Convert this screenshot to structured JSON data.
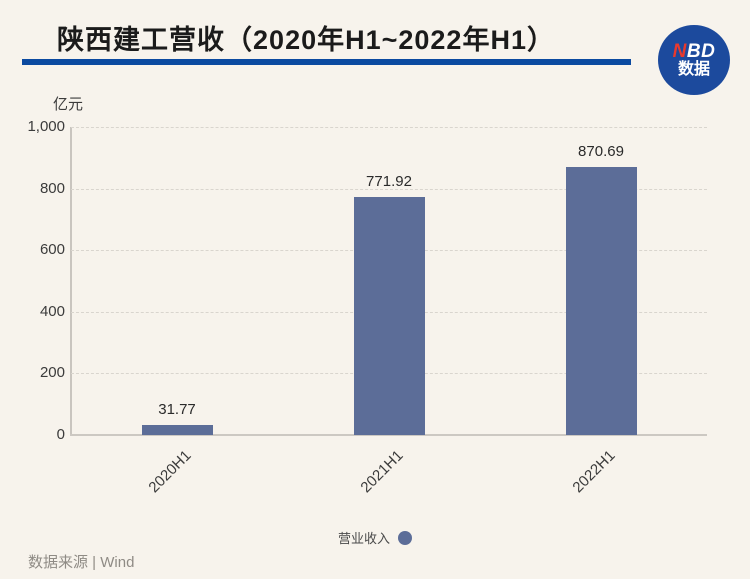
{
  "title": "陕西建工营收（2020年H1~2022年H1）",
  "logo": {
    "n": "N",
    "bd": "BD",
    "sub": "数据"
  },
  "chart_data": {
    "type": "bar",
    "title": "陕西建工营收（2020年H1~2022年H1）",
    "unit_label": "亿元",
    "categories": [
      "2020H1",
      "2021H1",
      "2022H1"
    ],
    "series": [
      {
        "name": "营业收入",
        "values": [
          31.77,
          771.92,
          870.69
        ]
      }
    ],
    "value_labels": [
      "31.77",
      "771.92",
      "870.69"
    ],
    "y_tick_values": [
      0,
      200,
      400,
      600,
      800,
      1000
    ],
    "y_tick_labels": [
      "0",
      "200",
      "400",
      "600",
      "800",
      "1,000"
    ],
    "ylim": [
      0,
      1000
    ],
    "grid": true,
    "legend_position": "bottom",
    "bar_color": "#5c6d98"
  },
  "legend": {
    "label": "营业收入"
  },
  "footer": {
    "source": "数据来源 | Wind"
  },
  "colors": {
    "background": "#f7f3ec",
    "bar": "#5c6d98",
    "title_underline": "#0b4aa0",
    "logo_blue": "#1c4a9d",
    "logo_red": "#e8392d",
    "gridline": "#d9d5ce",
    "axis": "#c9c5bf",
    "footer_text": "#8f8b85"
  }
}
